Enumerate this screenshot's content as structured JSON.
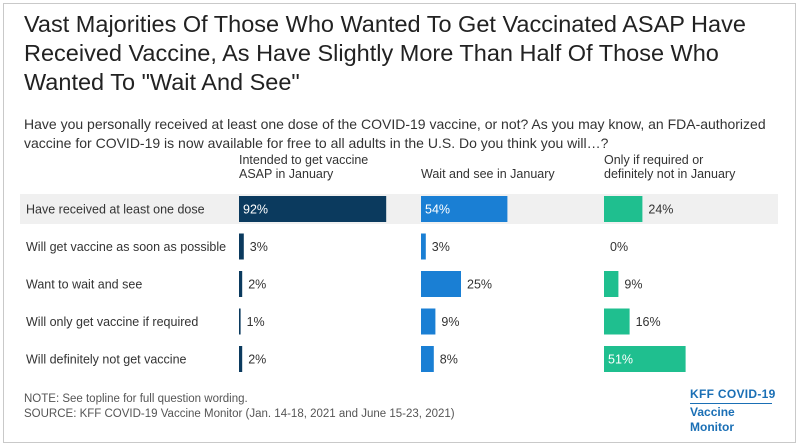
{
  "title": "Vast Majorities Of Those Who Wanted To Get Vaccinated ASAP Have Received Vaccine, As Have Slightly More Than Half Of Those Who Wanted To \"Wait And See\"",
  "subtitle": "Have you personally received at least one dose of the COVID-19 vaccine, or not? As you may know, an FDA-authorized vaccine for COVID-19 is now available for free to all adults in the U.S. Do you think you will…?",
  "chart_data": {
    "type": "bar",
    "orientation": "horizontal",
    "layout": "small-multiples",
    "categories": [
      "Have received at least one dose",
      "Will get vaccine as soon as possible",
      "Want to wait and see",
      "Will only get vaccine if required",
      "Will definitely not get vaccine"
    ],
    "series": [
      {
        "name": "Intended to get vaccine ASAP in January",
        "values": [
          92,
          3,
          2,
          1,
          2
        ],
        "color": "#0b3a5e"
      },
      {
        "name": "Wait and see in January",
        "values": [
          54,
          3,
          25,
          9,
          8
        ],
        "color": "#1a7fd4"
      },
      {
        "name": "Only if required or definitely not in January",
        "values": [
          24,
          0,
          9,
          16,
          51
        ],
        "color": "#1fbf8f"
      }
    ],
    "unit": "%",
    "xlim": [
      0,
      100
    ]
  },
  "footer": {
    "note": "NOTE: See topline for full question wording.",
    "source": "SOURCE: KFF COVID-19 Vaccine Monitor (Jan. 14-18, 2021 and June 15-23, 2021)"
  },
  "logo": {
    "line1": "KFF COVID-19",
    "line2": "Vaccine Monitor",
    "color": "#1a6fb5"
  }
}
